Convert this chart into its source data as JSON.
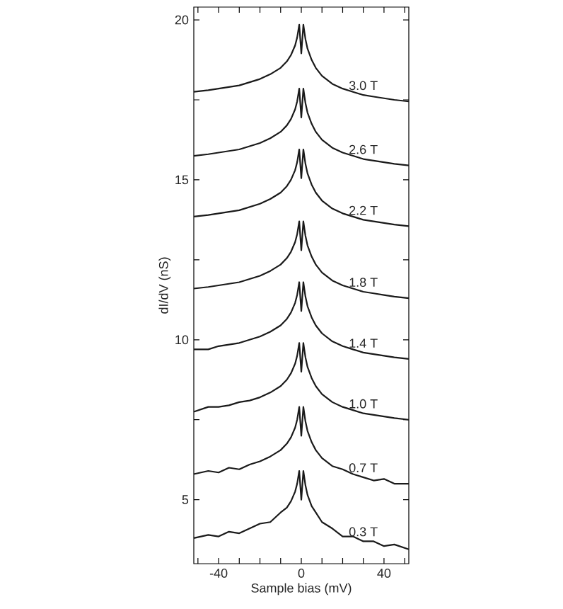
{
  "chart_data": {
    "type": "line",
    "xlabel": "Sample bias (mV)",
    "ylabel": "dI/dV (nS)",
    "xlim": [
      -52,
      52
    ],
    "ylim": [
      3,
      20.4
    ],
    "xticks": [
      {
        "value": -50,
        "label": null
      },
      {
        "value": -40,
        "label": "-40"
      },
      {
        "value": -30,
        "label": null
      },
      {
        "value": -20,
        "label": null
      },
      {
        "value": -10,
        "label": null
      },
      0,
      {
        "value": 10,
        "label": null
      },
      {
        "value": 20,
        "label": null
      },
      {
        "value": 30,
        "label": null
      },
      40,
      {
        "value": 50,
        "label": null
      }
    ],
    "yticks": [
      5,
      {
        "value": 7.5,
        "label": null
      },
      10,
      {
        "value": 12.5,
        "label": null
      },
      15,
      {
        "value": 17.5,
        "label": null
      },
      20
    ],
    "legend": false,
    "grid": false,
    "marker": "none",
    "line_style": "solid",
    "x": [
      -52,
      -45,
      -40,
      -35,
      -30,
      -25,
      -20,
      -15,
      -10,
      -7,
      -5,
      -3,
      -2,
      -1,
      0,
      1,
      2,
      3,
      5,
      7,
      10,
      15,
      20,
      25,
      30,
      35,
      40,
      45,
      52
    ],
    "series": [
      {
        "name": "0.3 T",
        "color": "#1a1a1a",
        "values": [
          3.8,
          3.9,
          3.85,
          4.0,
          3.95,
          4.1,
          4.25,
          4.3,
          4.6,
          4.75,
          4.95,
          5.25,
          5.5,
          5.9,
          5.0,
          5.9,
          5.45,
          5.15,
          4.8,
          4.6,
          4.3,
          4.1,
          3.85,
          3.85,
          3.7,
          3.7,
          3.55,
          3.6,
          3.45
        ]
      },
      {
        "name": "0.7 T",
        "color": "#1a1a1a",
        "values": [
          5.8,
          5.9,
          5.85,
          6.0,
          5.95,
          6.1,
          6.2,
          6.35,
          6.55,
          6.75,
          6.95,
          7.25,
          7.5,
          7.9,
          7.0,
          7.9,
          7.45,
          7.15,
          6.8,
          6.55,
          6.3,
          6.05,
          5.95,
          5.8,
          5.7,
          5.6,
          5.65,
          5.5,
          5.5
        ]
      },
      {
        "name": "1.0 T",
        "color": "#1a1a1a",
        "values": [
          7.75,
          7.9,
          7.9,
          7.95,
          8.05,
          8.1,
          8.2,
          8.35,
          8.55,
          8.75,
          8.95,
          9.25,
          9.5,
          9.9,
          9.0,
          9.9,
          9.45,
          9.15,
          8.8,
          8.55,
          8.3,
          8.05,
          7.9,
          7.8,
          7.7,
          7.65,
          7.6,
          7.55,
          7.5
        ]
      },
      {
        "name": "1.4 T",
        "color": "#1a1a1a",
        "values": [
          9.7,
          9.7,
          9.8,
          9.85,
          9.9,
          10.0,
          10.1,
          10.25,
          10.45,
          10.65,
          10.85,
          11.15,
          11.4,
          11.8,
          10.9,
          11.8,
          11.35,
          11.05,
          10.7,
          10.45,
          10.2,
          9.95,
          9.8,
          9.7,
          9.6,
          9.55,
          9.5,
          9.45,
          9.4
        ]
      },
      {
        "name": "1.8 T",
        "color": "#1a1a1a",
        "values": [
          11.6,
          11.65,
          11.7,
          11.75,
          11.8,
          11.9,
          12.0,
          12.15,
          12.35,
          12.55,
          12.75,
          13.05,
          13.3,
          13.7,
          12.8,
          13.7,
          13.25,
          12.95,
          12.6,
          12.35,
          12.1,
          11.85,
          11.7,
          11.6,
          11.5,
          11.45,
          11.4,
          11.35,
          11.3
        ]
      },
      {
        "name": "2.2 T",
        "color": "#1a1a1a",
        "values": [
          13.85,
          13.9,
          13.95,
          14.0,
          14.05,
          14.15,
          14.25,
          14.4,
          14.6,
          14.8,
          15.0,
          15.3,
          15.55,
          15.95,
          15.05,
          15.95,
          15.5,
          15.2,
          14.85,
          14.6,
          14.35,
          14.1,
          13.95,
          13.85,
          13.75,
          13.7,
          13.65,
          13.6,
          13.55
        ]
      },
      {
        "name": "2.6 T",
        "color": "#1a1a1a",
        "values": [
          15.75,
          15.8,
          15.85,
          15.9,
          15.95,
          16.05,
          16.15,
          16.3,
          16.5,
          16.7,
          16.9,
          17.2,
          17.45,
          17.85,
          16.95,
          17.85,
          17.4,
          17.1,
          16.75,
          16.5,
          16.25,
          16.0,
          15.85,
          15.75,
          15.65,
          15.6,
          15.55,
          15.5,
          15.45
        ]
      },
      {
        "name": "3.0 T",
        "color": "#1a1a1a",
        "values": [
          17.75,
          17.8,
          17.85,
          17.9,
          17.95,
          18.05,
          18.15,
          18.3,
          18.5,
          18.7,
          18.9,
          19.2,
          19.45,
          19.85,
          18.95,
          19.85,
          19.4,
          19.1,
          18.75,
          18.5,
          18.25,
          18.0,
          17.85,
          17.75,
          17.65,
          17.6,
          17.55,
          17.5,
          17.45
        ]
      }
    ]
  }
}
